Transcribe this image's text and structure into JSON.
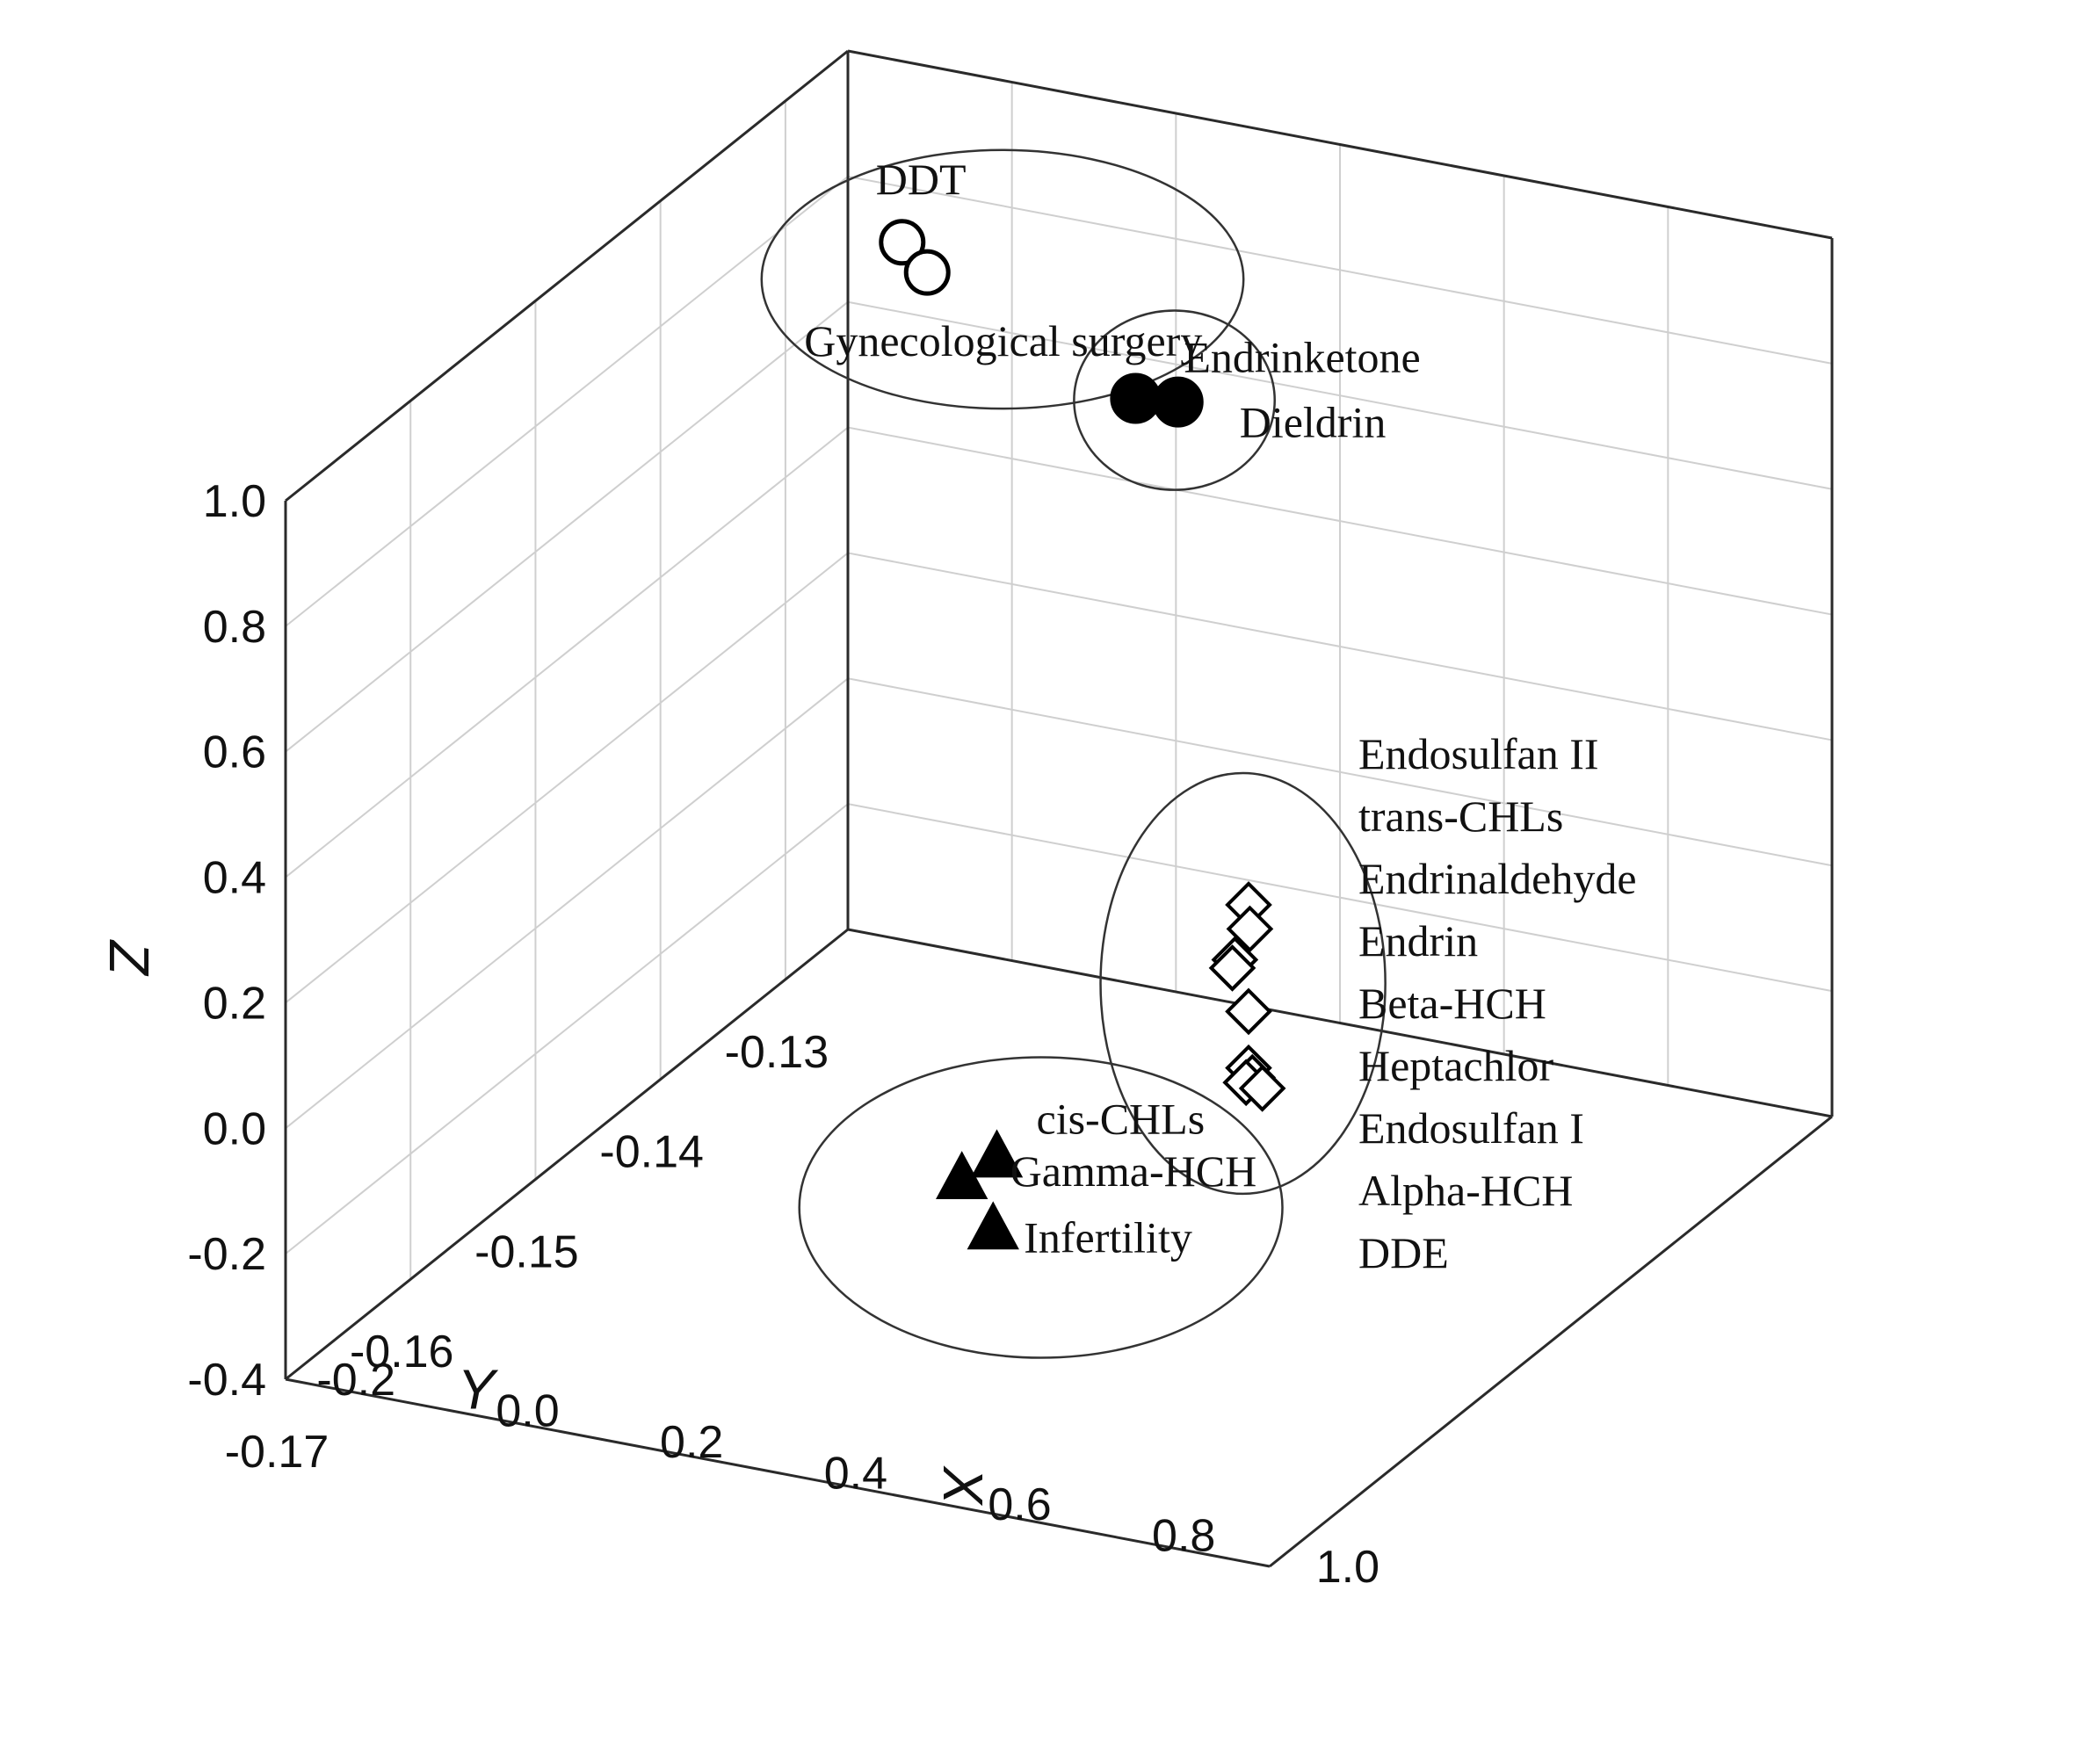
{
  "chart_data": {
    "type": "scatter",
    "projection": "3d",
    "axes": {
      "x": {
        "label": "X",
        "ticks": [
          "-0.2",
          "0.0",
          "0.2",
          "0.4",
          "0.6",
          "0.8",
          "1.0"
        ],
        "range": [
          -0.2,
          1.0
        ]
      },
      "y": {
        "label": "Y",
        "ticks": [
          "-0.13",
          "-0.14",
          "-0.15",
          "-0.16",
          "-0.17"
        ],
        "range": [
          -0.125,
          -0.17
        ]
      },
      "z": {
        "label": "Z",
        "ticks": [
          "-0.4",
          "-0.2",
          "0.0",
          "0.2",
          "0.4",
          "0.6",
          "0.8",
          "1.0"
        ],
        "range": [
          -0.4,
          1.0
        ]
      }
    },
    "grid": true,
    "groups": [
      {
        "name": "cluster-1",
        "marker": "open-circle",
        "labels": [
          "DDT",
          "Gynecological surgery"
        ],
        "points": [
          {
            "x": -0.05,
            "y": -0.1305,
            "z": 0.82
          },
          {
            "x": -0.05,
            "y": -0.1285,
            "z": 0.74
          }
        ]
      },
      {
        "name": "cluster-2",
        "marker": "filled-circle",
        "labels": [
          "Endrinketone",
          "Dieldrin"
        ],
        "points": [
          {
            "x": 0.55,
            "y": -0.1512,
            "z": 1.05
          },
          {
            "x": 0.55,
            "y": -0.1478,
            "z": 0.99
          }
        ]
      },
      {
        "name": "cluster-3",
        "marker": "open-diamond",
        "labels": [
          "Endosulfan II",
          "trans-CHLs",
          "Endrinaldehyde",
          "Endrin",
          "Beta-HCH",
          "Heptachlor",
          "Endosulfan I",
          "Alpha-HCH",
          "DDE"
        ],
        "points": [
          {
            "x": 0.86,
            "y": -0.1625,
            "z": 0.5
          },
          {
            "x": 0.86,
            "y": -0.1624,
            "z": 0.46
          },
          {
            "x": 0.86,
            "y": -0.1636,
            "z": 0.43
          },
          {
            "x": 0.86,
            "y": -0.1638,
            "z": 0.42
          },
          {
            "x": 0.86,
            "y": -0.1625,
            "z": 0.33
          },
          {
            "x": 0.86,
            "y": -0.1625,
            "z": 0.24
          },
          {
            "x": 0.86,
            "y": -0.1622,
            "z": 0.22
          },
          {
            "x": 0.86,
            "y": -0.1627,
            "z": 0.22
          },
          {
            "x": 0.86,
            "y": -0.1614,
            "z": 0.19
          }
        ]
      },
      {
        "name": "cluster-4",
        "marker": "filled-triangle",
        "labels": [
          "cis-CHLs",
          "Gamma-HCH",
          "Infertility"
        ],
        "points": [
          {
            "x": 0.55,
            "y": -0.1623,
            "z": 0.02
          },
          {
            "x": 0.55,
            "y": -0.1651,
            "z": 0.03
          },
          {
            "x": 0.55,
            "y": -0.1626,
            "z": -0.09
          }
        ]
      }
    ]
  }
}
